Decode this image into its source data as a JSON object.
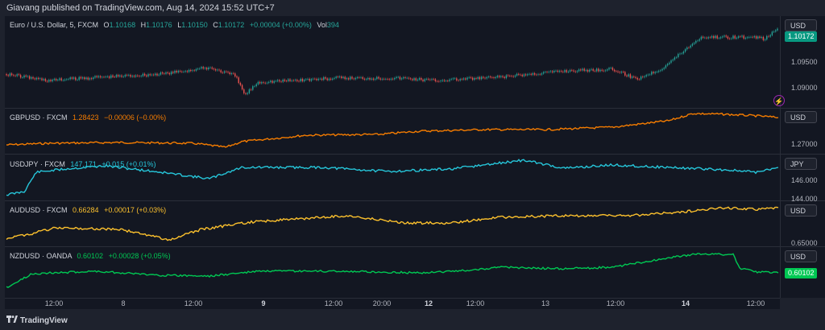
{
  "header": {
    "published_by": "Giavang published on TradingView.com, Aug 14, 2024 15:52 UTC+7"
  },
  "footer": {
    "brand": "TradingView"
  },
  "time_axis": {
    "ticks": [
      "12:00",
      "8",
      "12:00",
      "9",
      "12:00",
      "20:00",
      "12",
      "12:00",
      "13",
      "12:00",
      "14",
      "12:00"
    ],
    "bold_ticks": [
      "9",
      "12",
      "14"
    ]
  },
  "colors": {
    "bg": "#131722",
    "eurusd_up": "#26a69a",
    "eurusd_down": "#ef5350",
    "gbpusd": "#f57c00",
    "usdjpy": "#26c6da",
    "audusd": "#fbc02d",
    "nzdusd": "#00c853",
    "alert": "#e040fb"
  },
  "icons": {
    "alert": "bolt-icon",
    "logo": "tradingview-logo-icon"
  },
  "panes": [
    {
      "id": "eurusd",
      "legend": {
        "symbol": "Euro / U.S. Dollar, 5, FXCM",
        "o_label": "O",
        "o": "1.10168",
        "h_label": "H",
        "h": "1.10176",
        "l_label": "L",
        "l": "1.10150",
        "c_label": "C",
        "c": "1.10172",
        "change": "+0.00004 (+0.00%)",
        "vol_label": "Vol",
        "vol": "394"
      },
      "currency": "USD",
      "axis_labels": [
        "1.09500",
        "1.09000"
      ],
      "last_price": "1.10172",
      "last_price_color": "#089981"
    },
    {
      "id": "gbpusd",
      "legend": {
        "symbol": "GBPUSD · FXCM",
        "last": "1.28423",
        "change": "−0.00006 (−0.00%)"
      },
      "currency": "USD",
      "axis_labels": [
        "1.27000"
      ]
    },
    {
      "id": "usdjpy",
      "legend": {
        "symbol": "USDJPY · FXCM",
        "last": "147.171",
        "change": "+0.015 (+0.01%)"
      },
      "currency": "JPY",
      "axis_labels": [
        "146.000",
        "144.000"
      ]
    },
    {
      "id": "audusd",
      "legend": {
        "symbol": "AUDUSD · FXCM",
        "last": "0.66284",
        "change": "+0.00017 (+0.03%)"
      },
      "currency": "USD",
      "axis_labels": [
        "0.65000"
      ]
    },
    {
      "id": "nzdusd",
      "legend": {
        "symbol": "NZDUSD · OANDA",
        "last": "0.60102",
        "change": "+0.00028 (+0.05%)"
      },
      "currency": "USD",
      "axis_labels": [],
      "last_price": "0.60102",
      "last_price_color": "#00c853"
    }
  ]
}
